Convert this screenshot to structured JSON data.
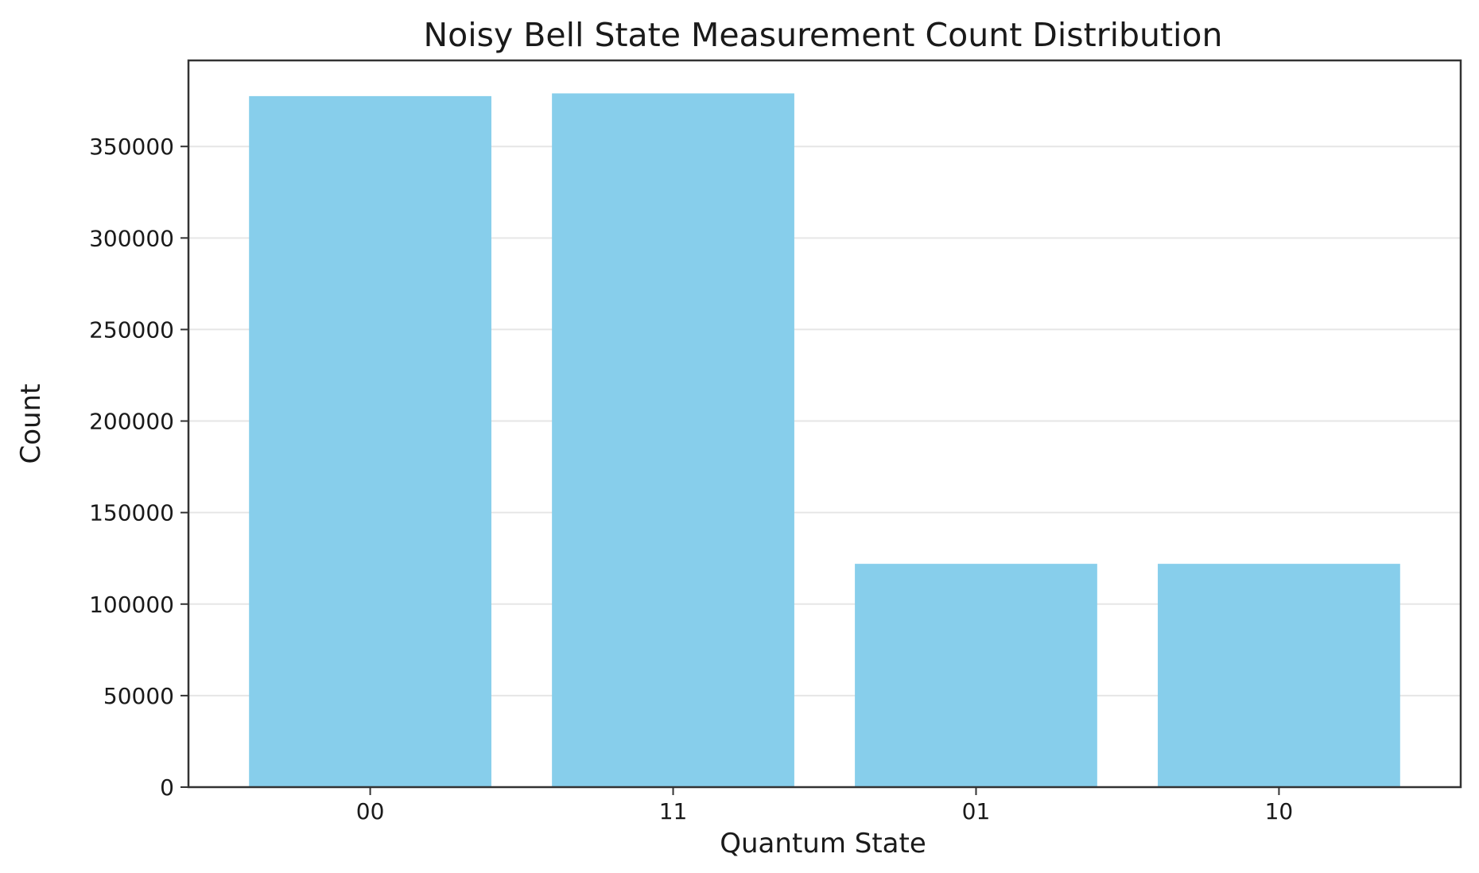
{
  "chart_data": {
    "type": "bar",
    "title": "Noisy Bell State Measurement Count Distribution",
    "xlabel": "Quantum State",
    "ylabel": "Count",
    "categories": [
      "00",
      "11",
      "01",
      "10"
    ],
    "values": [
      377500,
      379000,
      122000,
      122000
    ],
    "ylim": [
      0,
      397000
    ],
    "yticks": [
      0,
      50000,
      100000,
      150000,
      200000,
      250000,
      300000,
      350000
    ],
    "grid": "y",
    "bar_color": "#87CEEB"
  }
}
